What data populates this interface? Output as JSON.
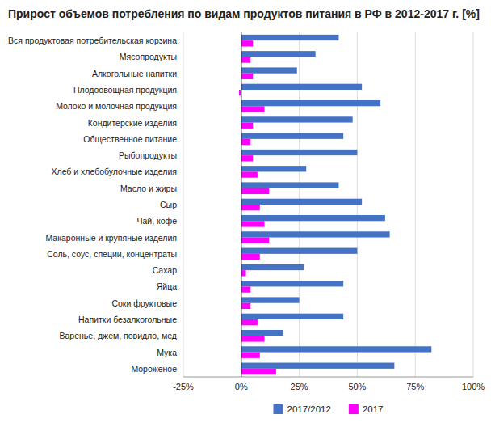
{
  "chart_data": {
    "type": "bar",
    "orientation": "horizontal",
    "title": "Прирост объемов потребления по видам продуктов питания в РФ в 2012-2017 г. [%]",
    "categories": [
      "Вся продуктовая потребительская корзина",
      "Мясопродукты",
      "Алкогольные напитки",
      "Плодоовощная продукция",
      "Молоко и молочная продукция",
      "Кондитерские изделия",
      "Общественное питание",
      "Рыбопродукты",
      "Хлеб и хлебобулочные изделия",
      "Масло и жиры",
      "Сыр",
      "Чай, кофе",
      "Макаронные и крупяные изделия",
      "Соль, соус, специи, концентраты",
      "Сахар",
      "Яйца",
      "Соки фруктовые",
      "Напитки безалкогольные",
      "Варенье, джем, повидло, мед",
      "Мука",
      "Мороженое"
    ],
    "series": [
      {
        "name": "2017/2012",
        "color": "#4472c4",
        "values": [
          42,
          32,
          24,
          52,
          60,
          48,
          44,
          50,
          28,
          42,
          52,
          62,
          64,
          50,
          27,
          44,
          25,
          44,
          18,
          82,
          66
        ]
      },
      {
        "name": "2017",
        "color": "#ff00ff",
        "values": [
          5,
          4,
          5,
          -1,
          10,
          5,
          4,
          5,
          7,
          12,
          8,
          10,
          12,
          8,
          2,
          4,
          4,
          7,
          10,
          8,
          15
        ]
      }
    ],
    "xlim": [
      -25,
      100
    ],
    "xticks": [
      {
        "value": -25,
        "label": "-25%"
      },
      {
        "value": 0,
        "label": "0%"
      },
      {
        "value": 25,
        "label": "25%"
      },
      {
        "value": 50,
        "label": "50%"
      },
      {
        "value": 75,
        "label": "75%"
      },
      {
        "value": 100,
        "label": "100%"
      }
    ],
    "grid": true,
    "legend": "bottom"
  }
}
